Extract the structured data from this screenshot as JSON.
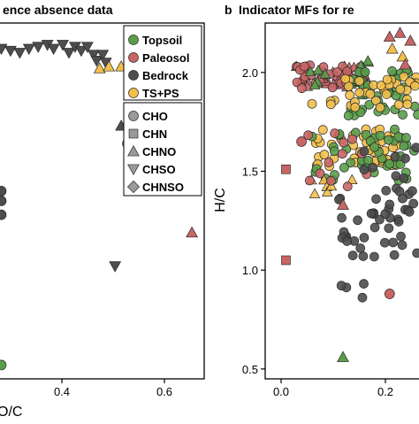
{
  "colors": {
    "Topsoil": "#5a9e4a",
    "Paleosol": "#c96565",
    "Bedrock": "#4d4d4d",
    "TS+PS": "#f2bf4a",
    "legend_shape_gray": "#9a9a9a"
  },
  "chart_data": [
    {
      "type": "scatter",
      "title": "ence absence data",
      "xlabel": "O/C",
      "ylabel": "",
      "xticks": [
        0.4,
        0.6
      ],
      "xlim": [
        0.0,
        0.67
      ],
      "ylim": [
        0.45,
        2.25
      ],
      "grid": false,
      "legend": {
        "placement": "top-right",
        "groups": [
          "Topsoil",
          "Paleosol",
          "Bedrock",
          "TS+PS"
        ],
        "shapes": [
          "CHO",
          "CHN",
          "CHNO",
          "CHSO",
          "CHNSO"
        ]
      },
      "points": [
        {
          "x": 0.01,
          "y": 2.12,
          "g": "Bedrock",
          "s": "CHSO"
        },
        {
          "x": 0.04,
          "y": 2.11,
          "g": "Bedrock",
          "s": "CHSO"
        },
        {
          "x": 0.07,
          "y": 2.1,
          "g": "Bedrock",
          "s": "CHSO"
        },
        {
          "x": 0.1,
          "y": 2.12,
          "g": "Bedrock",
          "s": "CHSO"
        },
        {
          "x": 0.13,
          "y": 2.13,
          "g": "Bedrock",
          "s": "CHSO"
        },
        {
          "x": 0.16,
          "y": 2.14,
          "g": "Bedrock",
          "s": "CHSO"
        },
        {
          "x": 0.18,
          "y": 2.12,
          "g": "Bedrock",
          "s": "CHSO"
        },
        {
          "x": 0.21,
          "y": 2.14,
          "g": "Bedrock",
          "s": "CHSO"
        },
        {
          "x": 0.23,
          "y": 2.1,
          "g": "Bedrock",
          "s": "CHSO"
        },
        {
          "x": 0.25,
          "y": 2.13,
          "g": "Bedrock",
          "s": "CHSO"
        },
        {
          "x": 0.27,
          "y": 2.11,
          "g": "Bedrock",
          "s": "CHSO"
        },
        {
          "x": 0.29,
          "y": 2.13,
          "g": "Bedrock",
          "s": "CHSO"
        },
        {
          "x": 0.31,
          "y": 2.09,
          "g": "Bedrock",
          "s": "CHSO"
        },
        {
          "x": 0.32,
          "y": 2.06,
          "g": "Bedrock",
          "s": "CHSO"
        },
        {
          "x": 0.34,
          "y": 2.09,
          "g": "Bedrock",
          "s": "CHSO"
        },
        {
          "x": 0.35,
          "y": 2.05,
          "g": "Bedrock",
          "s": "CHSO"
        },
        {
          "x": 0.33,
          "y": 2.02,
          "g": "TS+PS",
          "s": "CHNO"
        },
        {
          "x": 0.36,
          "y": 2.03,
          "g": "TS+PS",
          "s": "CHNO"
        },
        {
          "x": 0.4,
          "y": 2.03,
          "g": "TS+PS",
          "s": "CHNO"
        },
        {
          "x": 0.4,
          "y": 1.73,
          "g": "Bedrock",
          "s": "CHNO"
        },
        {
          "x": 0.44,
          "y": 1.74,
          "g": "Topsoil",
          "s": "CHO"
        },
        {
          "x": 0.42,
          "y": 1.64,
          "g": "Topsoil",
          "s": "CHO"
        },
        {
          "x": 0.38,
          "y": 1.02,
          "g": "Bedrock",
          "s": "CHSO"
        },
        {
          "x": 0.63,
          "y": 1.19,
          "g": "Paleosol",
          "s": "CHNO"
        },
        {
          "x": 0.01,
          "y": 1.4,
          "g": "Bedrock",
          "s": "CHO"
        },
        {
          "x": 0.01,
          "y": 1.35,
          "g": "Bedrock",
          "s": "CHO"
        },
        {
          "x": 0.01,
          "y": 1.28,
          "g": "Bedrock",
          "s": "CHO"
        },
        {
          "x": 0.01,
          "y": 0.52,
          "g": "Topsoil",
          "s": "CHO"
        }
      ]
    },
    {
      "type": "scatter",
      "title_prefix": "b",
      "title": "Indicator MFs for re",
      "xlabel": "",
      "ylabel": "H/C",
      "xticks": [
        0.0,
        0.2
      ],
      "yticks": [
        0.5,
        1.0,
        1.5,
        2.0
      ],
      "xlim": [
        -0.04,
        0.26
      ],
      "ylim": [
        0.45,
        2.25
      ],
      "grid": false,
      "clusters": [
        {
          "g": "Paleosol",
          "s": "CHNO",
          "x": [
            0.02,
            0.16
          ],
          "y": [
            1.92,
            2.04
          ],
          "n": 46
        },
        {
          "g": "Paleosol",
          "s": "CHO",
          "x": [
            0.02,
            0.16
          ],
          "y": [
            1.92,
            2.04
          ],
          "n": 24
        },
        {
          "g": "Topsoil",
          "s": "CHNO",
          "x": [
            0.03,
            0.16
          ],
          "y": [
            1.88,
            2.06
          ],
          "n": 14
        },
        {
          "g": "Topsoil",
          "s": "CHO",
          "x": [
            0.12,
            0.26
          ],
          "y": [
            1.78,
            2.02
          ],
          "n": 44
        },
        {
          "g": "TS+PS",
          "s": "CHO",
          "x": [
            0.05,
            0.26
          ],
          "y": [
            1.82,
            1.98
          ],
          "n": 38
        },
        {
          "g": "TS+PS",
          "s": "CHO",
          "x": [
            0.05,
            0.22
          ],
          "y": [
            1.52,
            1.72
          ],
          "n": 44
        },
        {
          "g": "Topsoil",
          "s": "CHO",
          "x": [
            0.05,
            0.26
          ],
          "y": [
            1.45,
            1.72
          ],
          "n": 44
        },
        {
          "g": "TS+PS",
          "s": "CHNO",
          "x": [
            0.04,
            0.14
          ],
          "y": [
            1.38,
            1.5
          ],
          "n": 7
        },
        {
          "g": "Paleosol",
          "s": "CHO",
          "x": [
            0.03,
            0.16
          ],
          "y": [
            1.38,
            1.74
          ],
          "n": 12
        },
        {
          "g": "Bedrock",
          "s": "CHO",
          "x": [
            0.1,
            0.26
          ],
          "y": [
            1.06,
            1.42
          ],
          "n": 48
        },
        {
          "g": "Bedrock",
          "s": "CHO",
          "x": [
            0.1,
            0.16
          ],
          "y": [
            0.86,
            0.96
          ],
          "n": 4
        },
        {
          "g": "Bedrock",
          "s": "CHO",
          "x": [
            0.13,
            0.26
          ],
          "y": [
            1.45,
            1.62
          ],
          "n": 8
        }
      ],
      "points": [
        {
          "x": 0.0,
          "y": 1.51,
          "g": "Paleosol",
          "s": "CHN"
        },
        {
          "x": 0.0,
          "y": 1.05,
          "g": "Paleosol",
          "s": "CHN"
        },
        {
          "x": 0.11,
          "y": 0.56,
          "g": "Topsoil",
          "s": "CHNO"
        },
        {
          "x": 0.2,
          "y": 0.88,
          "g": "Paleosol",
          "s": "CHO"
        },
        {
          "x": 0.2,
          "y": 2.18,
          "g": "Paleosol",
          "s": "CHNO"
        },
        {
          "x": 0.22,
          "y": 2.2,
          "g": "Paleosol",
          "s": "CHNO"
        },
        {
          "x": 0.24,
          "y": 2.16,
          "g": "Paleosol",
          "s": "CHNO"
        },
        {
          "x": 0.205,
          "y": 2.12,
          "g": "TS+PS",
          "s": "CHNO"
        },
        {
          "x": 0.225,
          "y": 2.08,
          "g": "TS+PS",
          "s": "CHNO"
        },
        {
          "x": 0.23,
          "y": 2.04,
          "g": "Paleosol",
          "s": "CHNO"
        },
        {
          "x": 0.03,
          "y": 1.65,
          "g": "Paleosol",
          "s": "CHO"
        },
        {
          "x": 0.11,
          "y": 1.33,
          "g": "Paleosol",
          "s": "CHNO"
        }
      ]
    }
  ],
  "panel_a": {
    "title": "ence absence data",
    "xlabel": "O/C",
    "xtick_labels": [
      "0.4",
      "0.6"
    ],
    "legend_groups": [
      "Topsoil",
      "Paleosol",
      "Bedrock",
      "TS+PS"
    ],
    "legend_shapes": [
      "CHO",
      "CHN",
      "CHNO",
      "CHSO",
      "CHNSO"
    ]
  },
  "panel_b": {
    "letter": "b",
    "title": "Indicator MFs for re",
    "ylabel": "H/C",
    "xtick_labels": [
      "0.0",
      "0.2"
    ],
    "ytick_labels": [
      "0.5",
      "1.0",
      "1.5",
      "2.0"
    ]
  }
}
